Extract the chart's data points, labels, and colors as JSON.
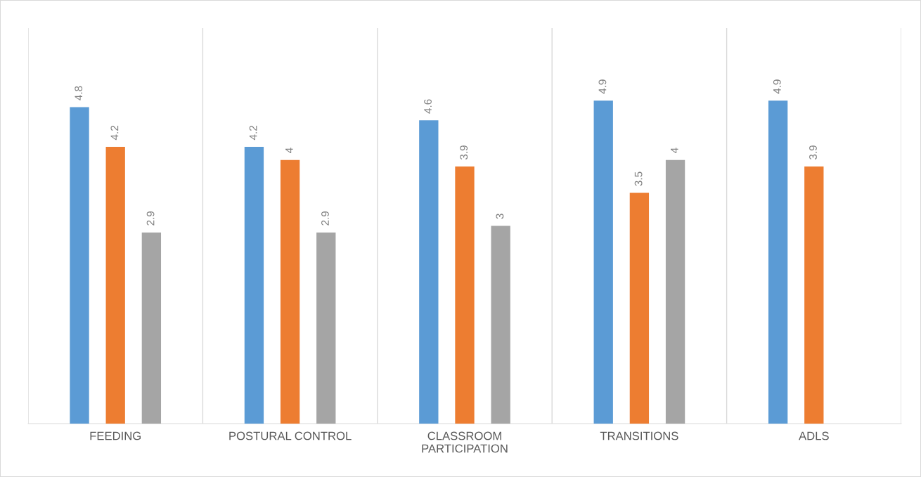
{
  "chart_data": {
    "type": "bar",
    "categories": [
      "FEEDING",
      "POSTURAL CONTROL",
      "CLASSROOM\nPARTICIPATION",
      "TRANSITIONS",
      "ADLS"
    ],
    "series": [
      {
        "color": "#5b9bd5",
        "values": [
          4.8,
          4.2,
          4.6,
          4.9,
          4.9
        ]
      },
      {
        "color": "#ed7d31",
        "values": [
          4.2,
          4,
          3.9,
          3.5,
          3.9
        ]
      },
      {
        "color": "#a5a5a5",
        "values": [
          2.9,
          2.9,
          3,
          4,
          null
        ]
      }
    ],
    "ylim": [
      0,
      6
    ],
    "data_labels": true,
    "grid": "x",
    "tick_labels": "x",
    "legend": false
  }
}
